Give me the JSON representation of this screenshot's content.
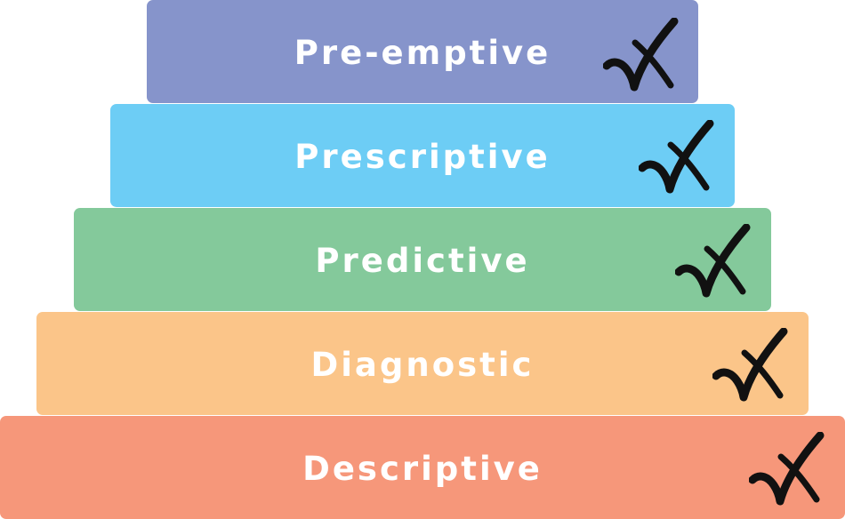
{
  "diagram": {
    "tiers": [
      {
        "label": "Pre-emptive",
        "color": "#8694cb",
        "icon": "check-icon"
      },
      {
        "label": "Prescriptive",
        "color": "#6dcdf5",
        "icon": "check-icon"
      },
      {
        "label": "Predictive",
        "color": "#84c99b",
        "icon": "check-icon"
      },
      {
        "label": "Diagnostic",
        "color": "#fbc589",
        "icon": "check-icon"
      },
      {
        "label": "Descriptive",
        "color": "#f6977a",
        "icon": "check-icon"
      }
    ]
  }
}
